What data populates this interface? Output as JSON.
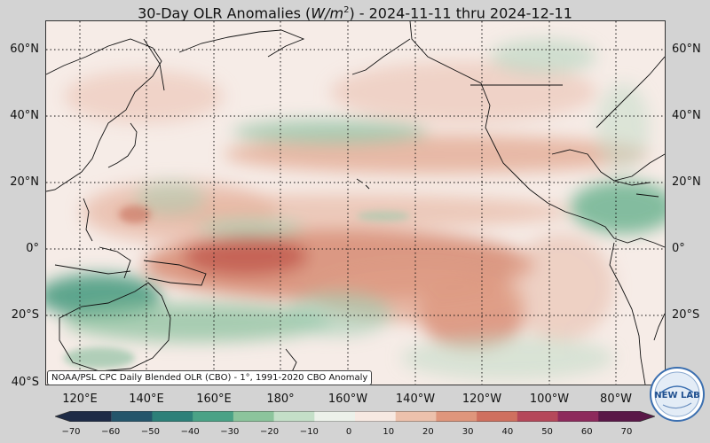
{
  "title": {
    "prefix": "30-Day OLR Anomalies (",
    "unit_var": "W/m",
    "unit_exp": "2",
    "suffix": ") - 2024-11-11 thru 2024-12-11"
  },
  "lat_labels": [
    "60°N",
    "40°N",
    "20°N",
    "0°",
    "20°S",
    "40°S"
  ],
  "lon_labels": [
    "120°E",
    "140°E",
    "160°E",
    "180°",
    "160°W",
    "140°W",
    "120°W",
    "100°W",
    "80°W"
  ],
  "credit": "NOAA/PSL CPC Daily Blended OLR (CBO) - 1°, 1991-2020 CBO Anomaly",
  "colorbar": {
    "ticks": [
      "−70",
      "−60",
      "−50",
      "−40",
      "−30",
      "−20",
      "−10",
      "0",
      "10",
      "20",
      "30",
      "40",
      "50",
      "60",
      "70"
    ],
    "colors": [
      "#1e2b46",
      "#24556b",
      "#2d8079",
      "#4aa286",
      "#8cc49c",
      "#c4dfc8",
      "#ecf1ea",
      "#f7e9e2",
      "#ecc1ac",
      "#df967c",
      "#cf705f",
      "#b5485a",
      "#8d2a5c",
      "#5a1848"
    ]
  },
  "logo": {
    "text": "NEW LAB",
    "icon": "psl-logo-icon"
  },
  "colors": {
    "wet": "#5fb38e",
    "dry": "#d9806a",
    "background": "#d3d3d3"
  }
}
